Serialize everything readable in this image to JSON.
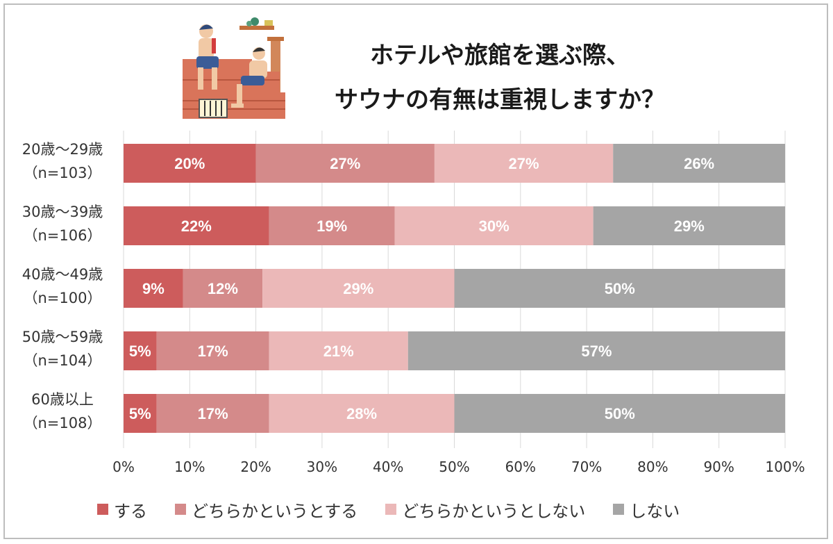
{
  "title_line1": "ホテルや旅館を選ぶ際、",
  "title_line2": "サウナの有無は重視しますか？",
  "icon": "sauna-illustration",
  "colors": {
    "series": [
      "#cd5c5c",
      "#d48a8a",
      "#ebb8b8",
      "#a5a5a5"
    ],
    "grid": "#d9d9d9",
    "label": "#ffffff"
  },
  "legend": [
    "する",
    "どちらかというとする",
    "どちらかというとしない",
    "しない"
  ],
  "chart_data": {
    "type": "bar",
    "orientation": "horizontal",
    "stacked": true,
    "categories": [
      {
        "label": "20歳～29歳",
        "n": "（n=103）"
      },
      {
        "label": "30歳～39歳",
        "n": "（n=106）"
      },
      {
        "label": "40歳～49歳",
        "n": "（n=100）"
      },
      {
        "label": "50歳～59歳",
        "n": "（n=104）"
      },
      {
        "label": "60歳以上",
        "n": "（n=108）"
      }
    ],
    "series": [
      {
        "name": "する",
        "values": [
          20,
          22,
          9,
          5,
          5
        ],
        "labels": [
          "20%",
          "22%",
          "9%",
          "5%",
          "5%"
        ]
      },
      {
        "name": "どちらかというとする",
        "values": [
          27,
          19,
          12,
          17,
          17
        ],
        "labels": [
          "27%",
          "19%",
          "12%",
          "17%",
          "17%"
        ]
      },
      {
        "name": "どちらかというとしない",
        "values": [
          27,
          30,
          29,
          21,
          28
        ],
        "labels": [
          "27%",
          "30%",
          "29%",
          "21%",
          "28%"
        ]
      },
      {
        "name": "しない",
        "values": [
          26,
          29,
          50,
          57,
          50
        ],
        "labels": [
          "26%",
          "29%",
          "50%",
          "57%",
          "50%"
        ]
      }
    ],
    "xlim": [
      0,
      100
    ],
    "xticks": [
      "0%",
      "10%",
      "20%",
      "30%",
      "40%",
      "50%",
      "60%",
      "70%",
      "80%",
      "90%",
      "100%"
    ],
    "grid": true,
    "legend_position": "bottom"
  }
}
